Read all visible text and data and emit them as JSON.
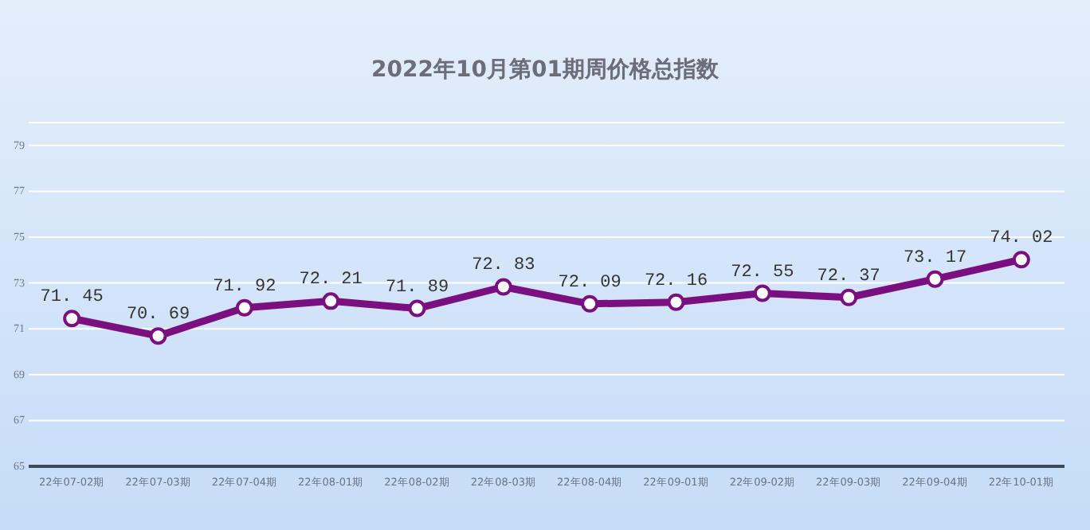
{
  "chart_data": {
    "type": "line",
    "title": "2022年10月第01期周价格总指数",
    "categories": [
      "22年07-02期",
      "22年07-03期",
      "22年07-04期",
      "22年08-01期",
      "22年08-02期",
      "22年08-03期",
      "22年08-04期",
      "22年09-01期",
      "22年09-02期",
      "22年09-03期",
      "22年09-04期",
      "22年10-01期"
    ],
    "series": [
      {
        "color": "#7a0f80",
        "values": [
          71.45,
          70.69,
          71.92,
          72.21,
          71.89,
          72.83,
          72.09,
          72.16,
          72.55,
          72.37,
          73.17,
          74.02
        ]
      }
    ],
    "ylim": [
      65,
      80
    ],
    "yticks": [
      65,
      67,
      69,
      71,
      73,
      75,
      77,
      79,
      {
        "value": 80,
        "label": null
      }
    ],
    "grid": "y",
    "marker": "circle",
    "data_labels": true
  }
}
